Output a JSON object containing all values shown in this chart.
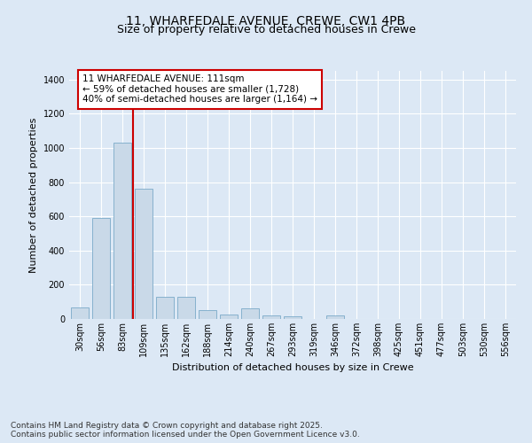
{
  "title_line1": "11, WHARFEDALE AVENUE, CREWE, CW1 4PB",
  "title_line2": "Size of property relative to detached houses in Crewe",
  "xlabel": "Distribution of detached houses by size in Crewe",
  "ylabel": "Number of detached properties",
  "categories": [
    "30sqm",
    "56sqm",
    "83sqm",
    "109sqm",
    "135sqm",
    "162sqm",
    "188sqm",
    "214sqm",
    "240sqm",
    "267sqm",
    "293sqm",
    "319sqm",
    "346sqm",
    "372sqm",
    "398sqm",
    "425sqm",
    "451sqm",
    "477sqm",
    "503sqm",
    "530sqm",
    "556sqm"
  ],
  "values": [
    65,
    590,
    1030,
    760,
    130,
    130,
    50,
    25,
    60,
    20,
    15,
    0,
    20,
    0,
    0,
    0,
    0,
    0,
    0,
    0,
    0
  ],
  "bar_color": "#c9d9e8",
  "bar_edge_color": "#7aaac8",
  "vline_color": "#cc0000",
  "vline_x": 3.0,
  "annotation_text": "11 WHARFEDALE AVENUE: 111sqm\n← 59% of detached houses are smaller (1,728)\n40% of semi-detached houses are larger (1,164) →",
  "annotation_box_facecolor": "#ffffff",
  "annotation_box_edgecolor": "#cc0000",
  "ylim": [
    0,
    1450
  ],
  "yticks": [
    0,
    200,
    400,
    600,
    800,
    1000,
    1200,
    1400
  ],
  "background_color": "#dce8f5",
  "plot_bg_color": "#dce8f5",
  "footer": "Contains HM Land Registry data © Crown copyright and database right 2025.\nContains public sector information licensed under the Open Government Licence v3.0.",
  "title_fontsize": 10,
  "subtitle_fontsize": 9,
  "axis_label_fontsize": 8,
  "tick_fontsize": 7,
  "annotation_fontsize": 7.5,
  "footer_fontsize": 6.5,
  "ylabel_fontsize": 8
}
